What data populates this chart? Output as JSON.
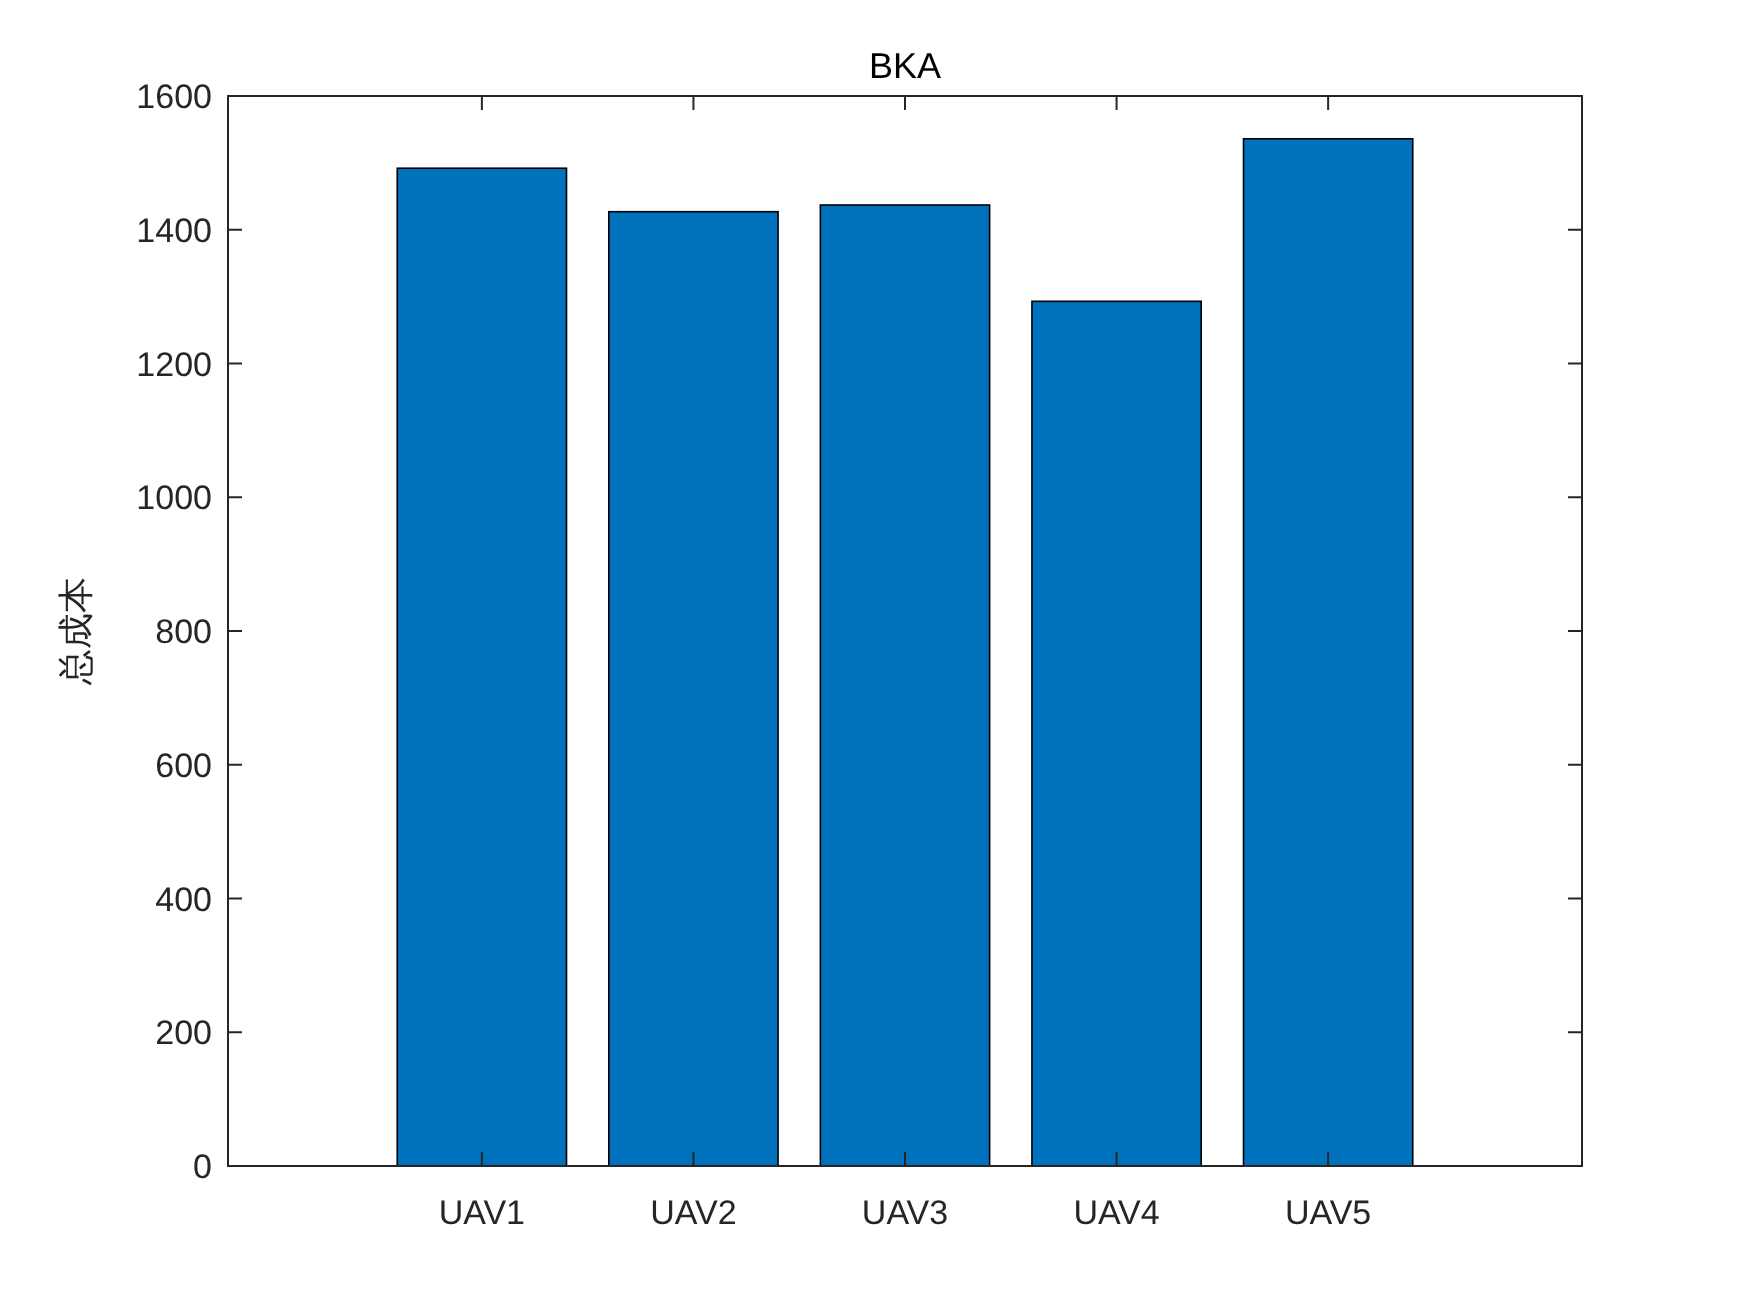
{
  "chart_data": {
    "type": "bar",
    "title": "BKA",
    "ylabel": "总成本",
    "categories": [
      "UAV1",
      "UAV2",
      "UAV3",
      "UAV4",
      "UAV5"
    ],
    "values": [
      1492,
      1427,
      1437,
      1293,
      1536
    ],
    "color": "#0072bd",
    "ylim": [
      0,
      1600
    ],
    "yticks": [
      0,
      200,
      400,
      600,
      800,
      1000,
      1200,
      1400,
      1600
    ]
  }
}
